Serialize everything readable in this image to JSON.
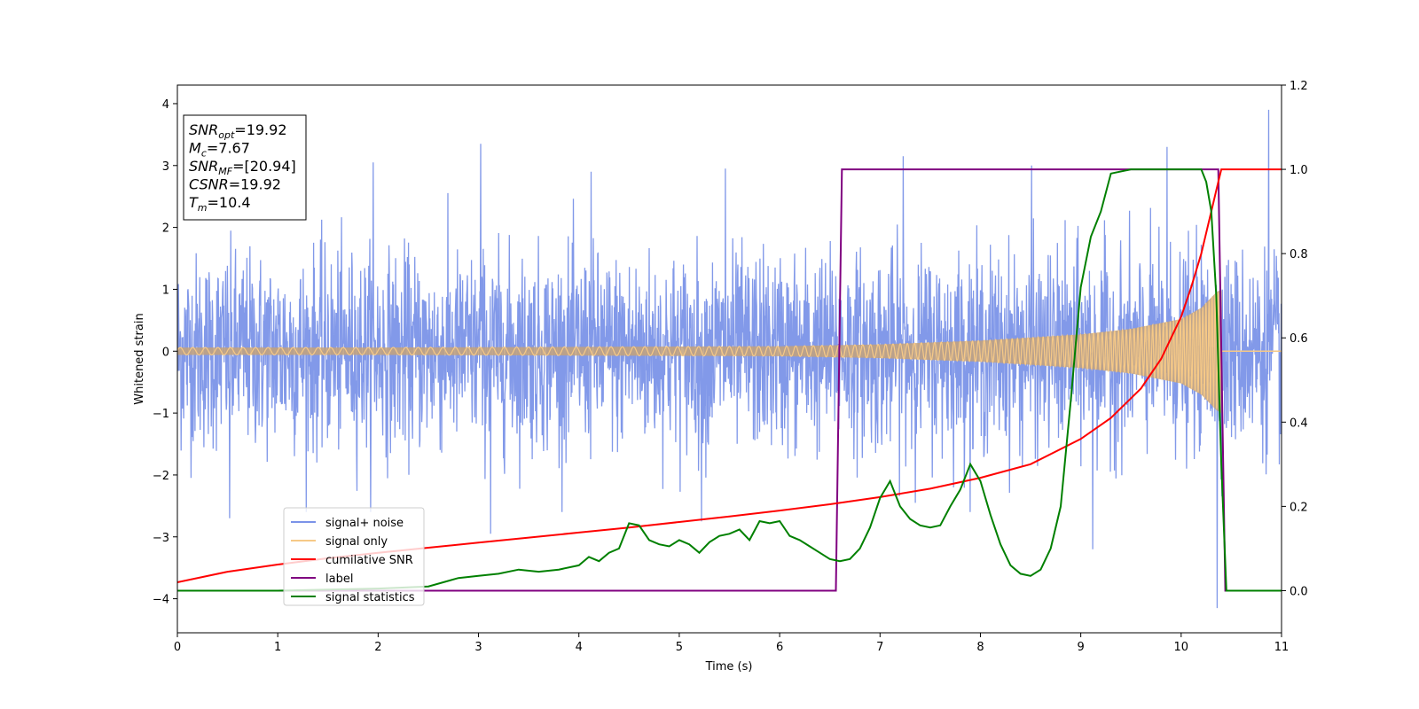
{
  "chart_data": {
    "type": "line",
    "xlabel": "Time (s)",
    "ylabel": "Whitened strain",
    "xlim": [
      0,
      11
    ],
    "ylim": [
      -4.55,
      4.3
    ],
    "y2lim": [
      -0.1,
      1.2
    ],
    "xticks": [
      "0",
      "1",
      "2",
      "3",
      "4",
      "5",
      "6",
      "7",
      "8",
      "9",
      "10",
      "11"
    ],
    "yticks": [
      "4",
      "3",
      "2",
      "1",
      "0",
      "−1",
      "−2",
      "−3",
      "−4"
    ],
    "y2ticks": [
      "1.2",
      "1.0",
      "0.8",
      "0.6",
      "0.4",
      "0.2",
      "0.0"
    ],
    "grid": false,
    "legend_position": "lower-left",
    "info_box": {
      "lines": [
        {
          "symbol": "SNR",
          "sub": "opt",
          "value": "=19.92"
        },
        {
          "symbol": "M",
          "sub": "c",
          "value": "=7.67"
        },
        {
          "symbol": "SNR",
          "sub": "MF",
          "value": "=[20.94]"
        },
        {
          "symbol": "CSNR",
          "sub": "",
          "value": "=19.92"
        },
        {
          "symbol": "T",
          "sub": "m",
          "value": "=10.4"
        }
      ]
    },
    "merger_time": 10.4,
    "series": [
      {
        "name": "signal+ noise",
        "color": "#7b93e8",
        "axis": "left",
        "description": "whitened noisy strain, amplitude about ±2 with spikes to ±3.9",
        "spikes": [
          [
            3.02,
            3.35
          ],
          [
            9.86,
            3.3
          ],
          [
            10.87,
            3.9
          ],
          [
            10.36,
            -4.15
          ],
          [
            1.95,
            3.05
          ],
          [
            4.12,
            2.9
          ],
          [
            5.46,
            2.95
          ],
          [
            7.23,
            3.15
          ],
          [
            8.51,
            3.0
          ],
          [
            5.22,
            -2.75
          ],
          [
            0.52,
            -2.7
          ],
          [
            3.12,
            -2.95
          ],
          [
            9.12,
            -3.2
          ]
        ]
      },
      {
        "name": "signal only",
        "color": "#f6c987",
        "axis": "left",
        "description": "chirp waveform: amplitude grows from about 0.05 to 1 at merger (10.4 s), then zero",
        "envelope": [
          [
            0,
            0.06
          ],
          [
            2,
            0.06
          ],
          [
            4,
            0.07
          ],
          [
            6,
            0.08
          ],
          [
            7,
            0.11
          ],
          [
            8,
            0.17
          ],
          [
            9,
            0.27
          ],
          [
            9.5,
            0.36
          ],
          [
            10,
            0.52
          ],
          [
            10.2,
            0.7
          ],
          [
            10.35,
            0.95
          ],
          [
            10.4,
            1.0
          ]
        ]
      },
      {
        "name": "cumilative SNR",
        "color": "#ff0000",
        "axis": "right",
        "x": [
          0,
          0.5,
          1,
          1.5,
          2,
          2.5,
          3,
          3.5,
          4,
          4.5,
          5,
          5.5,
          6,
          6.5,
          7,
          7.5,
          8,
          8.5,
          9,
          9.3,
          9.6,
          9.8,
          10,
          10.1,
          10.2,
          10.3,
          10.35,
          10.4,
          10.42,
          11
        ],
        "y": [
          0.02,
          0.045,
          0.062,
          0.077,
          0.09,
          0.102,
          0.114,
          0.126,
          0.138,
          0.15,
          0.163,
          0.176,
          0.19,
          0.205,
          0.222,
          0.242,
          0.268,
          0.3,
          0.36,
          0.41,
          0.48,
          0.55,
          0.65,
          0.72,
          0.8,
          0.9,
          0.95,
          1.0,
          1.0,
          1.0
        ]
      },
      {
        "name": "label",
        "color": "#800080",
        "axis": "right",
        "x": [
          0,
          6.56,
          6.62,
          10.37,
          10.44,
          11
        ],
        "y": [
          0,
          0,
          1,
          1,
          0,
          0
        ]
      },
      {
        "name": "signal statistics",
        "color": "#008000",
        "axis": "right",
        "x": [
          0,
          1,
          2,
          2.5,
          2.8,
          3.0,
          3.2,
          3.4,
          3.6,
          3.8,
          4.0,
          4.1,
          4.2,
          4.3,
          4.4,
          4.5,
          4.6,
          4.7,
          4.8,
          4.9,
          5.0,
          5.1,
          5.2,
          5.3,
          5.4,
          5.5,
          5.6,
          5.7,
          5.8,
          5.9,
          6.0,
          6.1,
          6.2,
          6.3,
          6.4,
          6.5,
          6.6,
          6.7,
          6.8,
          6.9,
          7.0,
          7.1,
          7.2,
          7.3,
          7.4,
          7.5,
          7.6,
          7.7,
          7.8,
          7.9,
          8.0,
          8.1,
          8.2,
          8.3,
          8.4,
          8.5,
          8.6,
          8.7,
          8.8,
          8.9,
          9.0,
          9.1,
          9.2,
          9.3,
          9.5,
          9.8,
          10.0,
          10.2,
          10.25,
          10.3,
          10.35,
          10.4,
          10.45,
          11
        ],
        "y": [
          0.0,
          0.0,
          0.005,
          0.01,
          0.03,
          0.035,
          0.04,
          0.05,
          0.045,
          0.05,
          0.06,
          0.08,
          0.07,
          0.09,
          0.1,
          0.16,
          0.155,
          0.12,
          0.11,
          0.105,
          0.12,
          0.11,
          0.09,
          0.115,
          0.13,
          0.135,
          0.145,
          0.12,
          0.165,
          0.16,
          0.165,
          0.13,
          0.12,
          0.105,
          0.09,
          0.075,
          0.07,
          0.075,
          0.1,
          0.15,
          0.22,
          0.26,
          0.2,
          0.17,
          0.155,
          0.15,
          0.155,
          0.2,
          0.24,
          0.3,
          0.26,
          0.18,
          0.11,
          0.06,
          0.04,
          0.035,
          0.05,
          0.1,
          0.2,
          0.45,
          0.72,
          0.84,
          0.9,
          0.99,
          1.0,
          1.0,
          1.0,
          1.0,
          0.97,
          0.9,
          0.7,
          0.3,
          0.0,
          0.0
        ]
      }
    ]
  }
}
